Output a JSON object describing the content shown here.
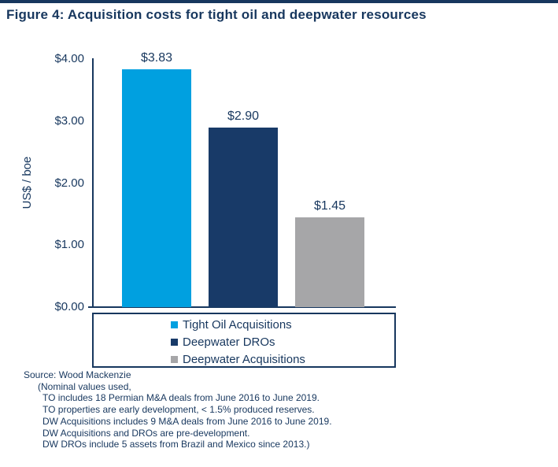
{
  "page": {
    "background": "#FFFFFF",
    "top_band_color": "#17375E",
    "accent_navy": "#17375E"
  },
  "title": "Figure 4: Acquisition costs for tight oil and deepwater resources",
  "chart_data": {
    "type": "bar",
    "title": "Figure 4: Acquisition costs for tight oil and deepwater resources",
    "categories": [
      "Tight Oil Acquisitions",
      "Deepwater DROs",
      "Deepwater Acquisitions"
    ],
    "values": [
      3.83,
      2.9,
      1.45
    ],
    "data_labels": [
      "$3.83",
      "$2.90",
      "$1.45"
    ],
    "bar_colors": [
      "#00A0E0",
      "#183A68",
      "#A6A6A8"
    ],
    "xlabel": "",
    "ylabel": "US$ / boe",
    "ylim": [
      0,
      4
    ],
    "ytick_labels": [
      "$4.00",
      "$3.00",
      "$2.00",
      "$1.00",
      "$0.00"
    ],
    "ytick_values": [
      4.0,
      3.0,
      2.0,
      1.0,
      0.0
    ],
    "grid": false,
    "legend_position": "bottom-box",
    "legend": [
      {
        "label": "Tight Oil Acquisitions",
        "color": "#00A0E0"
      },
      {
        "label": "Deepwater DROs",
        "color": "#183A68"
      },
      {
        "label": "Deepwater Acquisitions",
        "color": "#A6A6A8"
      }
    ]
  },
  "source_note": {
    "lines": [
      {
        "text": "Source: Wood Mackenzie",
        "indent": 0
      },
      {
        "text": "(Nominal values used,",
        "indent": 1
      },
      {
        "text": "TO includes 18 Permian M&A deals from June 2016 to June 2019.",
        "indent": 2
      },
      {
        "text": "TO properties are early development, < 1.5% produced reserves.",
        "indent": 2
      },
      {
        "text": "DW Acquisitions includes 9 M&A deals from June 2016 to June 2019.",
        "indent": 2
      },
      {
        "text": "DW Acquisitions and DROs are pre-development.",
        "indent": 2
      },
      {
        "text": "DW DROs include 5 assets from Brazil and Mexico since 2013.)",
        "indent": 2
      }
    ]
  }
}
